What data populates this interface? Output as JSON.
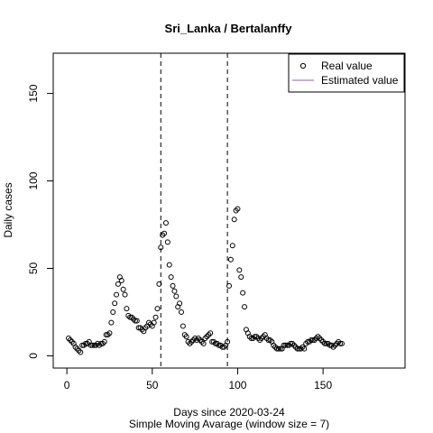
{
  "chart_data": {
    "type": "scatter",
    "title": "Sri_Lanka / Bertalanffy",
    "xlabel": "Days since 2020-03-24",
    "xlabel2": "Simple Moving Avarage (window size = 7)",
    "ylabel": "Daily cases",
    "xlim": [
      -8,
      198
    ],
    "ylim": [
      -7,
      173
    ],
    "xticks": [
      0,
      50,
      100,
      150
    ],
    "yticks": [
      0,
      50,
      100,
      150
    ],
    "vlines": [
      55,
      94
    ],
    "legend": {
      "position": "top-right",
      "entries": [
        "Real value",
        "Estimated value"
      ]
    },
    "colors": {
      "points": "#000000",
      "estimated": "#9b59b6",
      "vlines": "#000000"
    },
    "series": [
      {
        "name": "Real value",
        "marker": "open-circle",
        "x": [
          1,
          2,
          3,
          4,
          5,
          6,
          7,
          8,
          9,
          10,
          11,
          12,
          13,
          14,
          15,
          16,
          17,
          18,
          19,
          20,
          21,
          22,
          23,
          24,
          25,
          26,
          27,
          28,
          29,
          30,
          31,
          32,
          33,
          34,
          35,
          36,
          37,
          38,
          39,
          40,
          41,
          42,
          43,
          44,
          45,
          46,
          47,
          48,
          49,
          50,
          51,
          52,
          53,
          54,
          55,
          56,
          57,
          58,
          59,
          60,
          61,
          62,
          63,
          64,
          65,
          66,
          67,
          68,
          69,
          70,
          71,
          72,
          73,
          74,
          75,
          76,
          77,
          78,
          79,
          80,
          81,
          82,
          83,
          84,
          85,
          86,
          87,
          88,
          89,
          90,
          91,
          92,
          93,
          94,
          95,
          96,
          97,
          98,
          99,
          100,
          101,
          102,
          103,
          104,
          105,
          106,
          107,
          108,
          109,
          110,
          111,
          112,
          113,
          114,
          115,
          116,
          117,
          118,
          119,
          120,
          121,
          122,
          123,
          124,
          125,
          126,
          127,
          128,
          129,
          130,
          131,
          132,
          133,
          134,
          135,
          136,
          137,
          138,
          139,
          140,
          141,
          142,
          143,
          144,
          145,
          146,
          147,
          148,
          149,
          150,
          151,
          152,
          153,
          154,
          155,
          156,
          157,
          158,
          159,
          160,
          161
        ],
        "y": [
          10,
          9,
          8,
          7,
          5,
          4,
          3,
          2,
          6,
          6,
          7,
          7,
          8,
          6,
          6,
          6,
          6,
          7,
          6,
          7,
          7,
          8,
          12,
          12,
          13,
          19,
          25,
          30,
          35,
          41,
          45,
          43,
          38,
          35,
          27,
          23,
          22,
          22,
          21,
          20,
          20,
          16,
          16,
          15,
          14,
          16,
          17,
          19,
          18,
          17,
          19,
          22,
          27,
          41,
          62,
          69,
          70,
          76,
          65,
          52,
          45,
          40,
          37,
          34,
          28,
          30,
          25,
          17,
          12,
          11,
          8,
          7,
          8,
          9,
          10,
          9,
          10,
          9,
          8,
          7,
          10,
          11,
          12,
          13,
          8,
          8,
          7,
          7,
          6,
          6,
          5,
          5,
          6,
          8,
          40,
          55,
          63,
          78,
          83,
          84,
          49,
          45,
          36,
          28,
          15,
          13,
          11,
          10,
          10,
          11,
          11,
          10,
          9,
          10,
          11,
          12,
          10,
          9,
          9,
          8,
          6,
          5,
          4,
          4,
          4,
          4,
          6,
          6,
          6,
          6,
          7,
          7,
          6,
          5,
          4,
          4,
          4,
          5,
          4,
          7,
          8,
          8,
          9,
          9,
          9,
          10,
          11,
          10,
          9,
          8,
          7,
          7,
          7,
          6,
          6,
          5,
          6,
          7,
          8,
          7,
          7
        ]
      },
      {
        "name": "Estimated value",
        "x": [],
        "y": []
      }
    ]
  }
}
